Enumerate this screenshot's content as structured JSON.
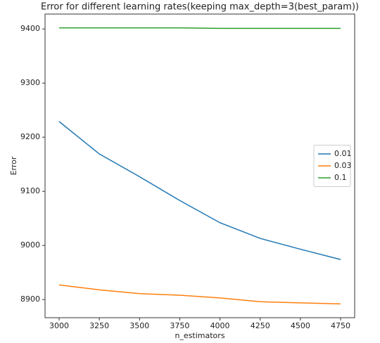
{
  "chart_data": {
    "type": "line",
    "title": "Error for different learning rates(keeping max_depth=3(best_param))",
    "x_label": "n_estimators",
    "y_label": "Error",
    "x": [
      3000,
      3250,
      3500,
      3750,
      4000,
      4250,
      4500,
      4750
    ],
    "series": [
      {
        "name": "0.01",
        "color": "#1f77b4",
        "values": [
          9229,
          9169,
          9127,
          9083,
          9042,
          9013,
          8993,
          8974
        ]
      },
      {
        "name": "0.03",
        "color": "#ff7f0e",
        "values": [
          8927,
          8918,
          8911,
          8908,
          8903,
          8896,
          8894,
          8892
        ]
      },
      {
        "name": "0.1",
        "color": "#2ca02c",
        "values": [
          9402,
          9402,
          9402,
          9402,
          9401,
          9401,
          9401,
          9401
        ]
      }
    ],
    "xlim": [
      2912.5,
      4837.5
    ],
    "ylim": [
      8866.5,
      9427.5
    ],
    "xticks": [
      3000,
      3250,
      3500,
      3750,
      4000,
      4250,
      4500,
      4750
    ],
    "yticks": [
      8900,
      9000,
      9100,
      9200,
      9300,
      9400
    ],
    "grid": false,
    "legend": "right"
  }
}
